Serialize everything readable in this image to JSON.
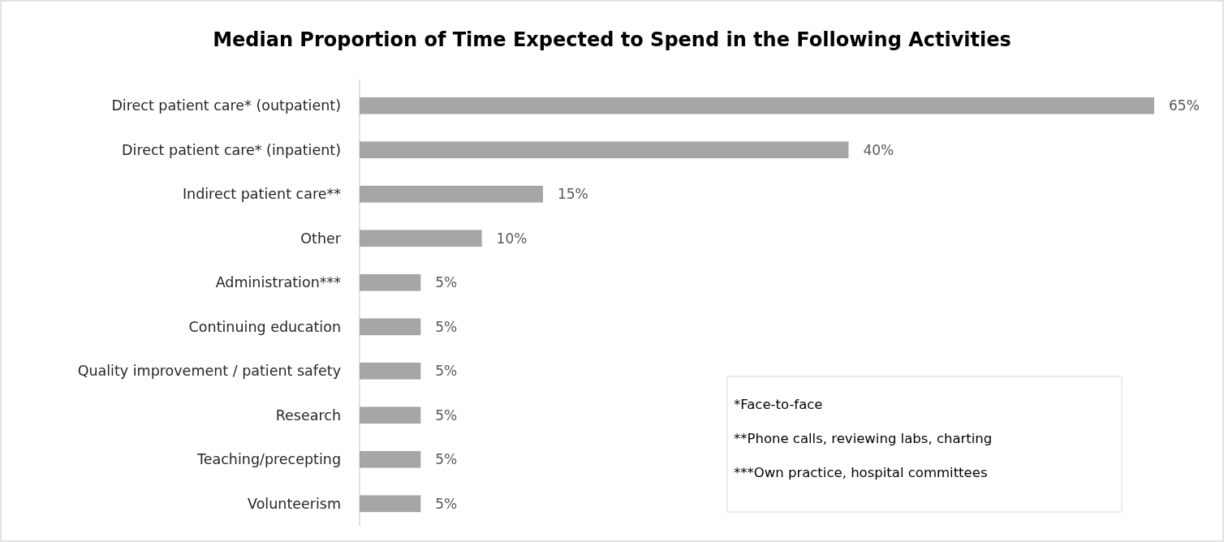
{
  "chart_data": {
    "type": "bar",
    "orientation": "horizontal",
    "title": "Median Proportion of Time Expected to Spend in the Following Activities",
    "categories": [
      "Direct patient care* (outpatient)",
      "Direct patient care* (inpatient)",
      "Indirect patient care**",
      "Other",
      "Administration***",
      "Continuing education",
      "Quality improvement / patient safety",
      "Research",
      "Teaching/precepting",
      "Volunteerism"
    ],
    "values": [
      65,
      40,
      15,
      10,
      5,
      5,
      5,
      5,
      5,
      5
    ],
    "value_labels": [
      "65%",
      "40%",
      "15%",
      "10%",
      "5%",
      "5%",
      "5%",
      "5%",
      "5%",
      "5%"
    ],
    "color": "#a6a6a6",
    "annotations": [
      "*Face-to-face",
      "**Phone calls, reviewing labs, charting",
      "***Own practice, hospital committees"
    ]
  }
}
